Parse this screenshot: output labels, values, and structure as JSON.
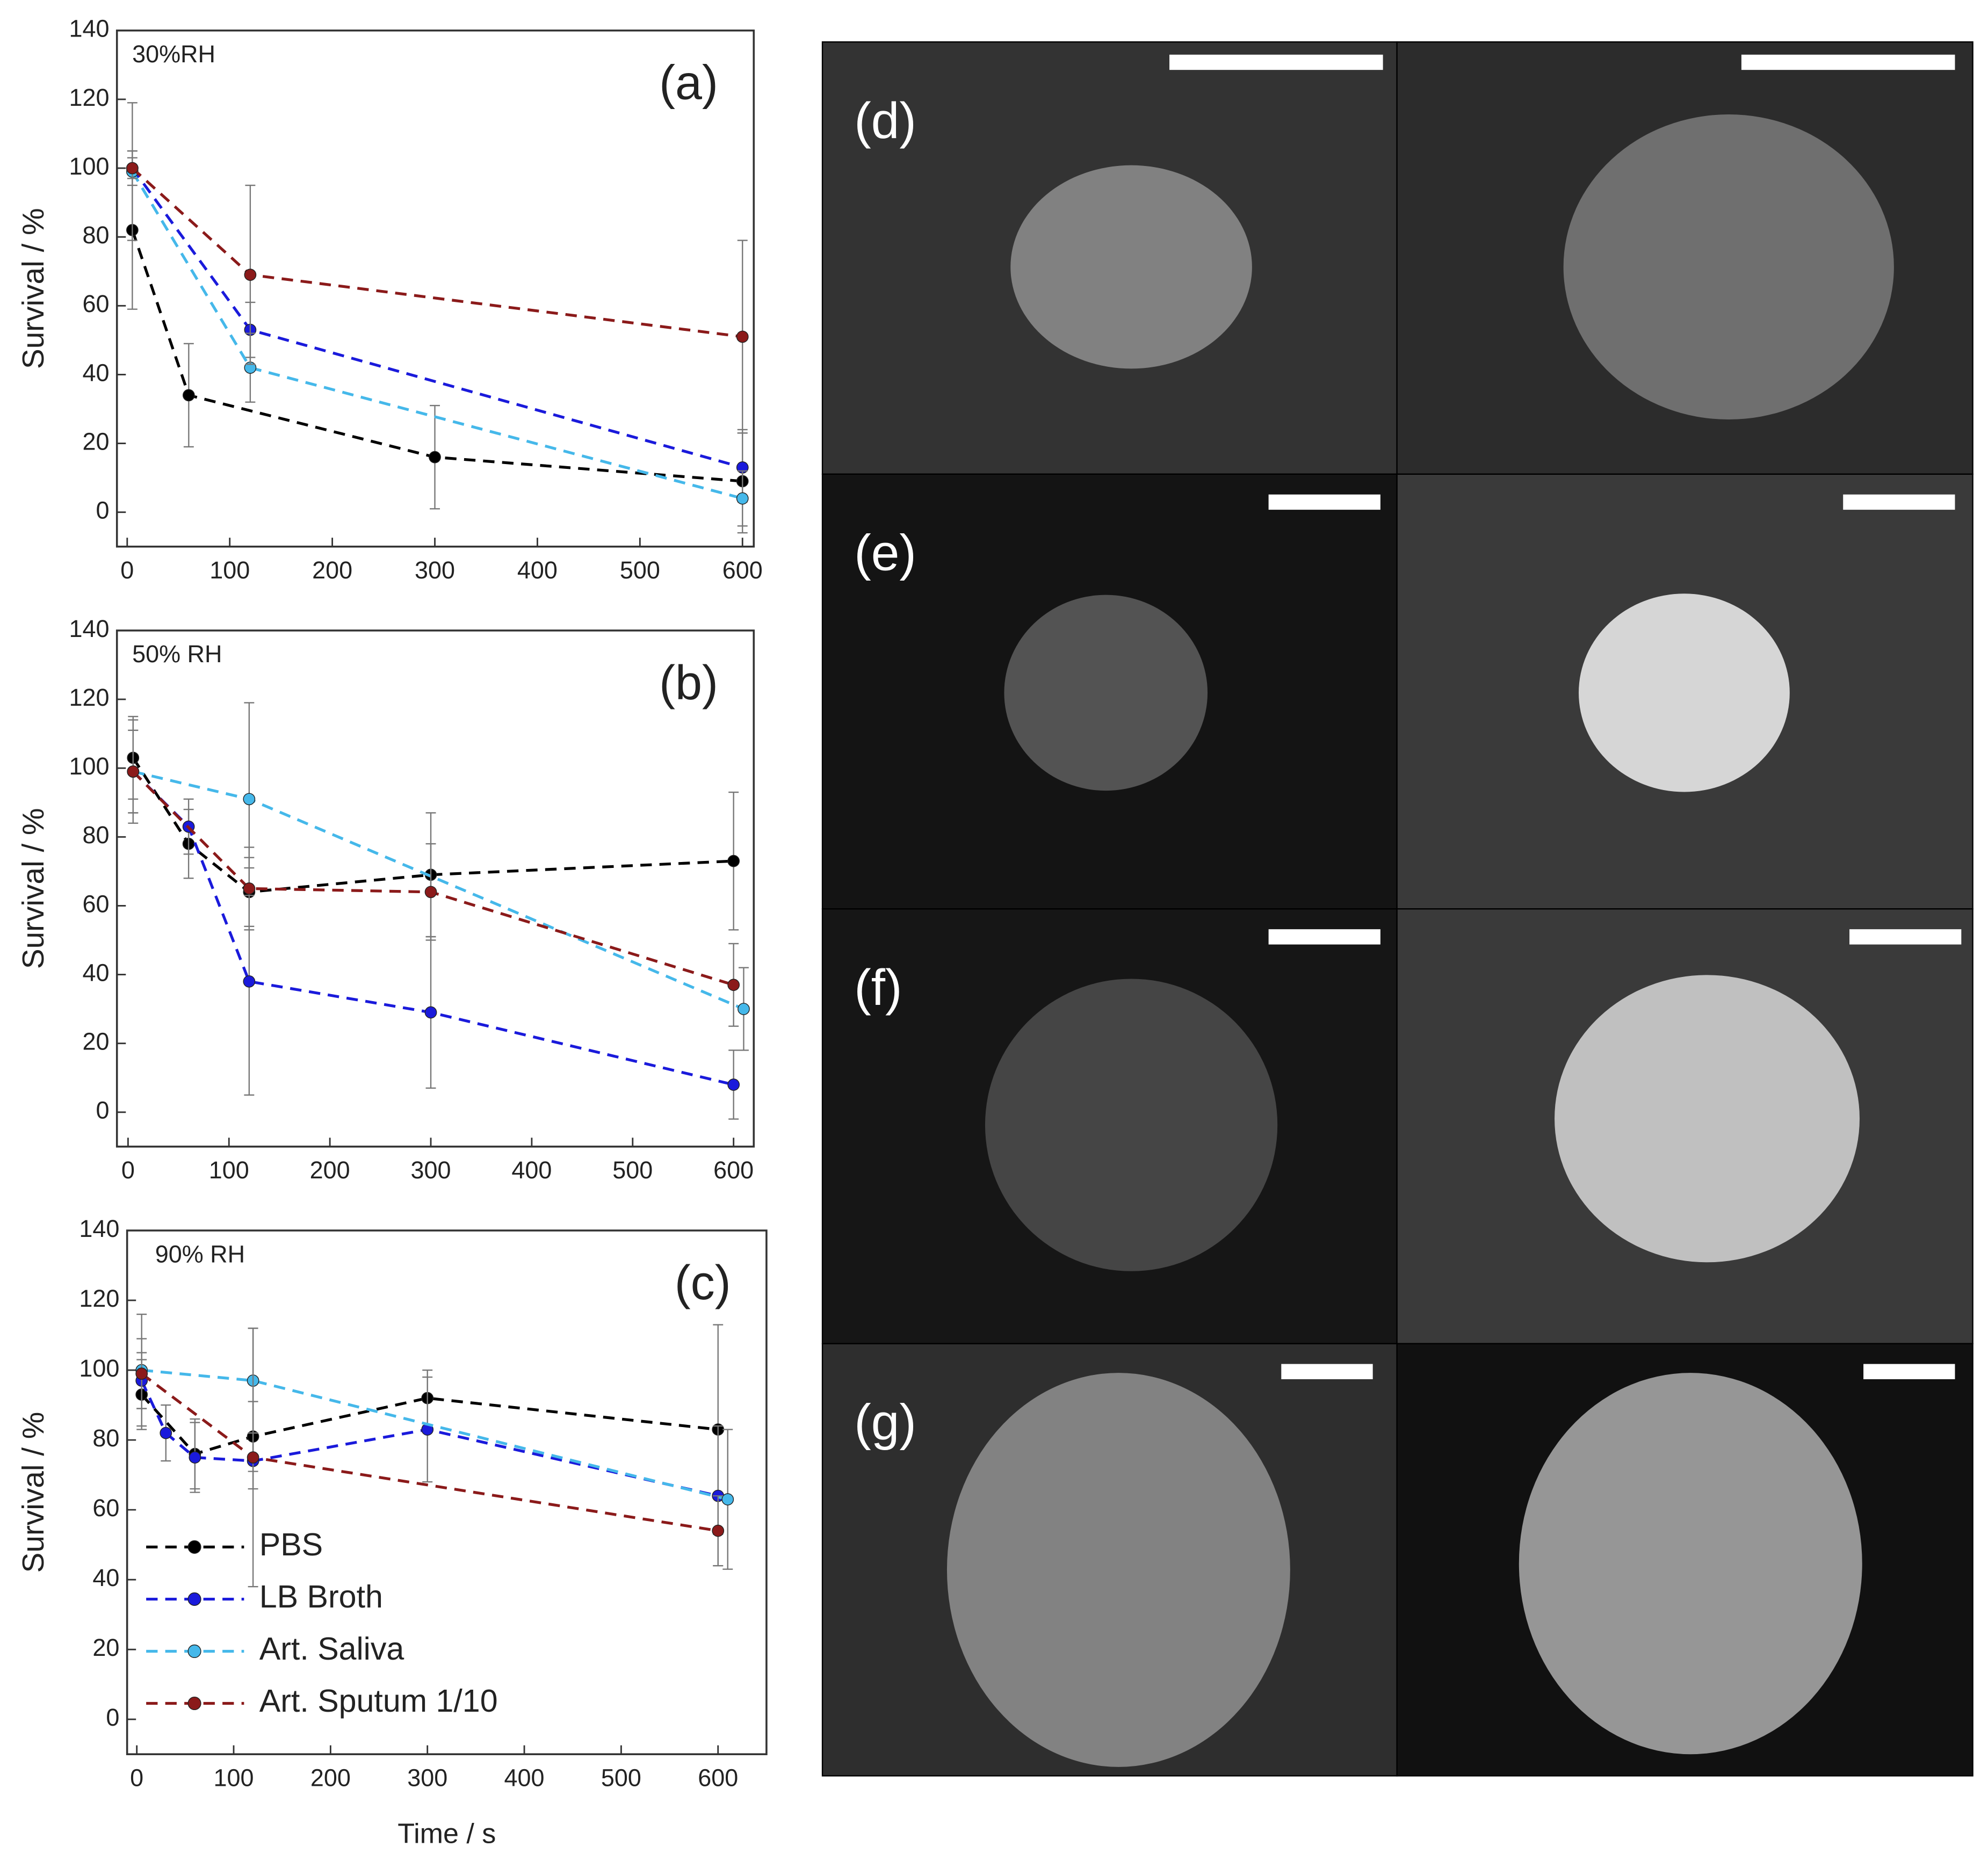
{
  "chart_data": [
    {
      "type": "line",
      "panel_label": "(a)",
      "annotation": "30%RH",
      "ylabel": "Survival / %",
      "xlim": [
        -10,
        611
      ],
      "ylim": [
        -10,
        140
      ],
      "xticks": [
        0,
        100,
        200,
        300,
        400,
        500,
        600
      ],
      "yticks": [
        0,
        20,
        40,
        60,
        80,
        100,
        120,
        140
      ],
      "series": [
        {
          "color": "#000000",
          "x": [
            5,
            60,
            300,
            600
          ],
          "values": [
            82,
            34,
            16,
            9
          ],
          "errors": [
            23,
            15,
            15,
            15
          ]
        },
        {
          "color": "#1a1adb",
          "x": [
            5,
            120,
            600
          ],
          "values": [
            100,
            53,
            13
          ],
          "errors": [
            5,
            8,
            10
          ]
        },
        {
          "color": "#45b8ea",
          "x": [
            5,
            120,
            600
          ],
          "values": [
            99,
            42,
            4
          ],
          "errors": [
            20,
            10,
            8
          ]
        },
        {
          "color": "#8b1a1a",
          "x": [
            5,
            120,
            600
          ],
          "values": [
            100,
            69,
            51
          ],
          "errors": [
            3,
            26,
            28
          ]
        }
      ]
    },
    {
      "type": "line",
      "panel_label": "(b)",
      "annotation": "50% RH",
      "ylabel": "Survival / %",
      "xlim": [
        -11,
        620
      ],
      "ylim": [
        -10,
        140
      ],
      "xticks": [
        0,
        100,
        200,
        300,
        400,
        500,
        600
      ],
      "yticks": [
        0,
        20,
        40,
        60,
        80,
        100,
        120,
        140
      ],
      "series": [
        {
          "color": "#000000",
          "x": [
            5,
            60,
            120,
            300,
            600
          ],
          "values": [
            103,
            78,
            64,
            69,
            73
          ],
          "errors": [
            12,
            10,
            10,
            18,
            20
          ]
        },
        {
          "color": "#1a1adb",
          "x": [
            5,
            60,
            120,
            300,
            600
          ],
          "values": [
            99,
            83,
            38,
            29,
            8
          ],
          "errors": [
            12,
            8,
            33,
            22,
            10
          ]
        },
        {
          "color": "#45b8ea",
          "x": [
            5,
            120,
            610
          ],
          "values": [
            99,
            91,
            30
          ],
          "errors": [
            15,
            28,
            12
          ]
        },
        {
          "color": "#8b1a1a",
          "x": [
            5,
            120,
            300,
            600
          ],
          "values": [
            99,
            65,
            64,
            37
          ],
          "errors": [
            12,
            12,
            14,
            12
          ]
        }
      ]
    },
    {
      "type": "line",
      "panel_label": "(c)",
      "annotation": "90% RH",
      "ylabel": "Survival / %",
      "xlabel": "Time / s",
      "xlim": [
        -10,
        650
      ],
      "ylim": [
        -10,
        140
      ],
      "xticks": [
        0,
        100,
        200,
        300,
        400,
        500,
        600
      ],
      "yticks": [
        0,
        20,
        40,
        60,
        80,
        100,
        120,
        140
      ],
      "series": [
        {
          "name": "PBS",
          "color": "#000000",
          "x": [
            5,
            60,
            120,
            300,
            600
          ],
          "values": [
            93,
            76,
            81,
            92,
            83
          ],
          "errors": [
            10,
            10,
            10,
            8,
            30
          ]
        },
        {
          "name": "LB Broth",
          "color": "#1a1adb",
          "x": [
            5,
            30,
            60,
            120,
            300,
            600
          ],
          "values": [
            97,
            82,
            75,
            74,
            83,
            64
          ],
          "errors": [
            8,
            8,
            10,
            8,
            15,
            20
          ]
        },
        {
          "name": "Art. Saliva",
          "color": "#45b8ea",
          "x": [
            5,
            120,
            610
          ],
          "values": [
            100,
            97,
            63
          ],
          "errors": [
            16,
            15,
            20
          ]
        },
        {
          "name": "Art. Sputum 1/10",
          "color": "#8b1a1a",
          "x": [
            5,
            120,
            600
          ],
          "values": [
            99,
            75,
            54
          ],
          "errors": [
            10,
            37,
            10
          ]
        }
      ]
    }
  ],
  "images": {
    "labels": [
      "(d)",
      "(e)",
      "(f)",
      "(g)"
    ]
  }
}
